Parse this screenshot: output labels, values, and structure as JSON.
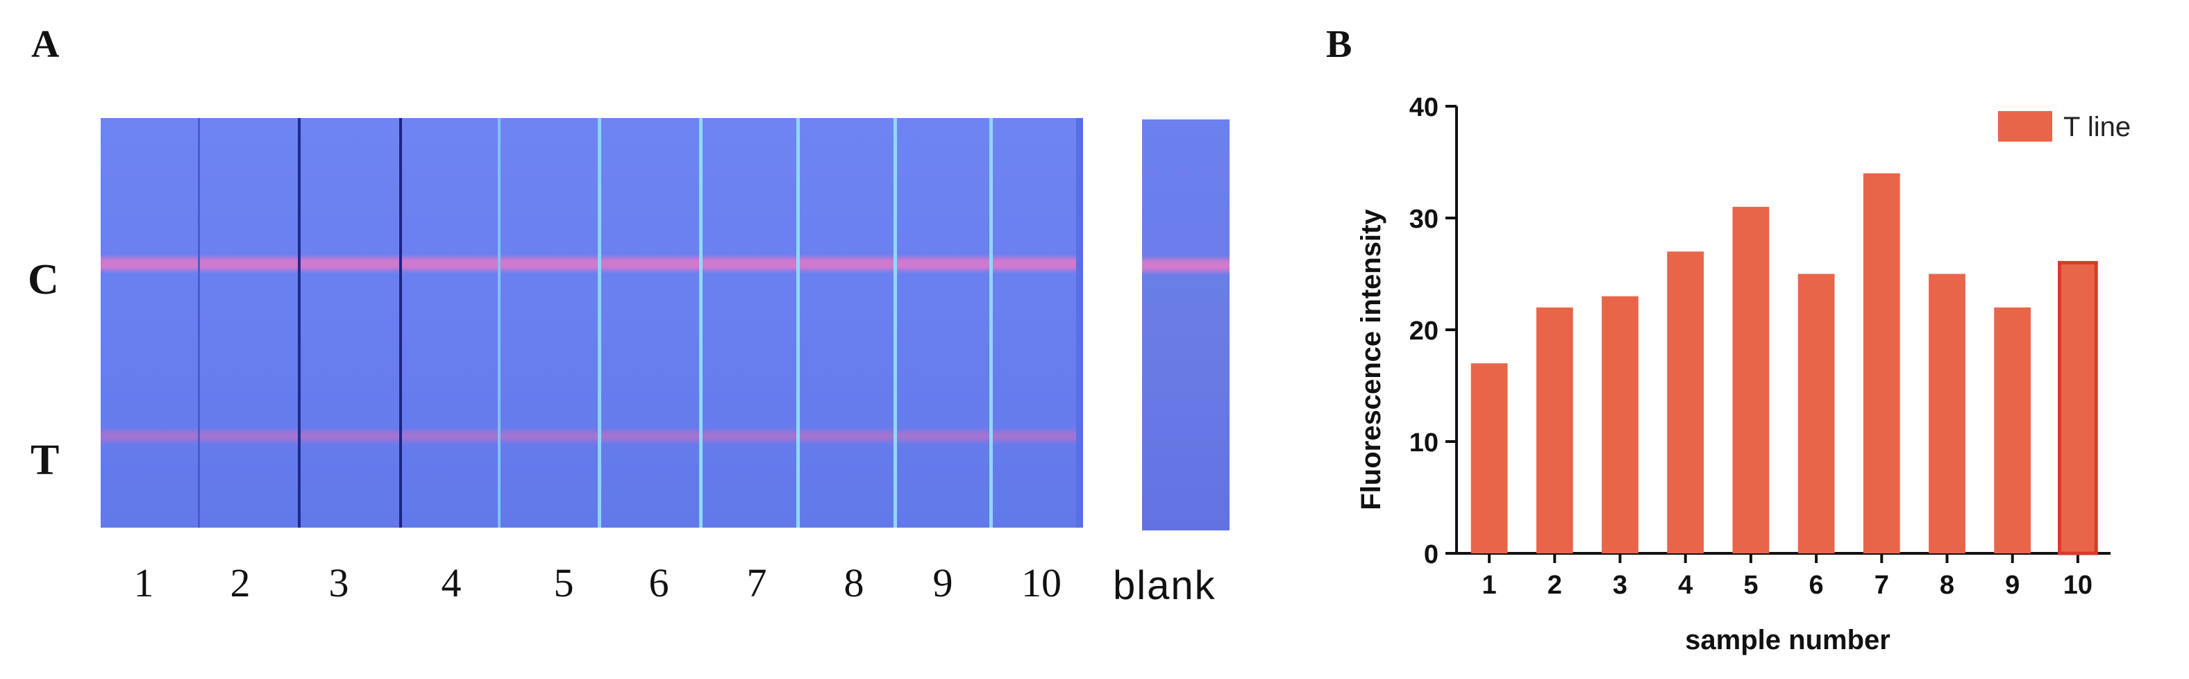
{
  "panel_a": {
    "label": "A",
    "side_labels": {
      "control": "C",
      "test": "T"
    },
    "lanes": [
      "1",
      "2",
      "3",
      "4",
      "5",
      "6",
      "7",
      "8",
      "9",
      "10"
    ],
    "blank_label": "blank"
  },
  "panel_b": {
    "label": "B"
  },
  "chart_data": {
    "type": "bar",
    "categories": [
      "1",
      "2",
      "3",
      "4",
      "5",
      "6",
      "7",
      "8",
      "9",
      "10"
    ],
    "series": [
      {
        "name": "T line",
        "values": [
          17,
          22,
          23,
          27,
          31,
          25,
          34,
          25,
          22,
          26
        ],
        "color": "#e8654a"
      }
    ],
    "xlabel": "sample number",
    "ylabel": "Fluorescence intensity",
    "ylim": [
      0,
      40
    ],
    "yticks": [
      0,
      10,
      20,
      30,
      40
    ],
    "legend": "top-right",
    "grid": false,
    "highlight_color": "#d93a2e"
  }
}
